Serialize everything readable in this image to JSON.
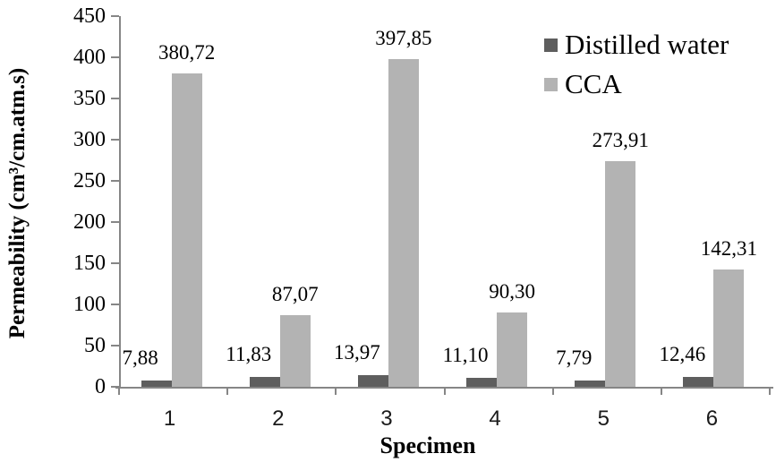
{
  "colors": {
    "axis": "#868686",
    "text": "#000000",
    "distilled_water": "#5e5e5e",
    "cca": "#b3b3b3",
    "background": "#ffffff"
  },
  "chart_data": {
    "type": "bar",
    "title": "",
    "xlabel": "Specimen",
    "ylabel": "Permeability (cm³/cm.atm.s)",
    "categories": [
      "1",
      "2",
      "3",
      "4",
      "5",
      "6"
    ],
    "series": [
      {
        "name": "Distilled water",
        "color": "#5e5e5e",
        "values": [
          7.88,
          11.83,
          13.97,
          11.1,
          7.79,
          12.46
        ],
        "value_labels": [
          "7,88",
          "11,83",
          "13,97",
          "11,10",
          "7,79",
          "12,46"
        ]
      },
      {
        "name": "CCA",
        "color": "#b3b3b3",
        "values": [
          380.72,
          87.07,
          397.85,
          90.3,
          273.91,
          142.31
        ],
        "value_labels": [
          "380,72",
          "87,07",
          "397,85",
          "90,30",
          "273,91",
          "142,31"
        ]
      }
    ],
    "ylim": [
      0,
      450
    ],
    "ytick_interval": 50,
    "ytick_labels": [
      "0",
      "50",
      "100",
      "150",
      "200",
      "250",
      "300",
      "350",
      "400",
      "450"
    ],
    "grid": false,
    "legend_position": "top-right",
    "decimal_separator": ","
  }
}
